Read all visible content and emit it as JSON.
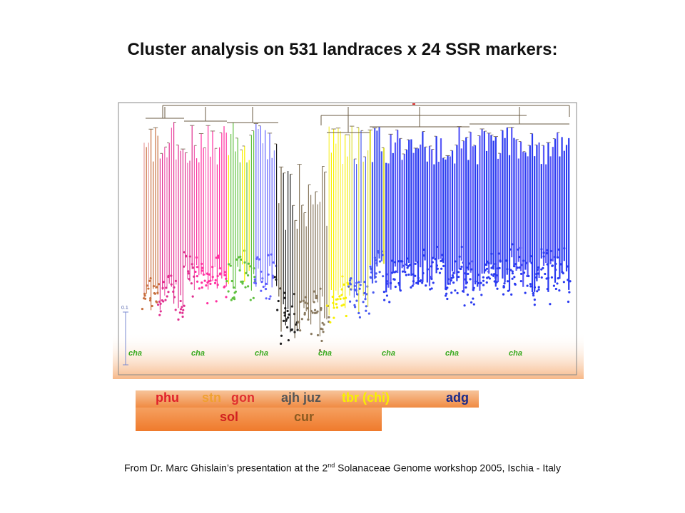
{
  "title": "Cluster analysis on 531 landraces x 24 SSR markers:",
  "scale_label": "0.1",
  "cluster_tags": [
    "cha",
    "cha",
    "cha",
    "cha",
    "cha",
    "cha",
    "cha"
  ],
  "taxon_labels": {
    "phu": "phu",
    "stn": "stn",
    "gon": "gon",
    "ajh_juz": "ajh juz",
    "tbr": "tbr (chi)",
    "adg": "adg",
    "sol": "sol",
    "cur": "cur"
  },
  "footer": {
    "prefix": "From Dr. Marc Ghislain’s presentation at the 2",
    "superscript": "nd",
    "suffix": " Solanaceae Genome workshop 2005, Ischia - Italy"
  },
  "colors": {
    "phu": "#e0202a",
    "stn": "#f0a030",
    "gon": "#e03030",
    "ajh_juz": "#555555",
    "tbr": "#f8f000",
    "adg": "#1a2a8a",
    "sol": "#d02020",
    "cur": "#8a5a20",
    "cha": "#3aaa20"
  }
}
